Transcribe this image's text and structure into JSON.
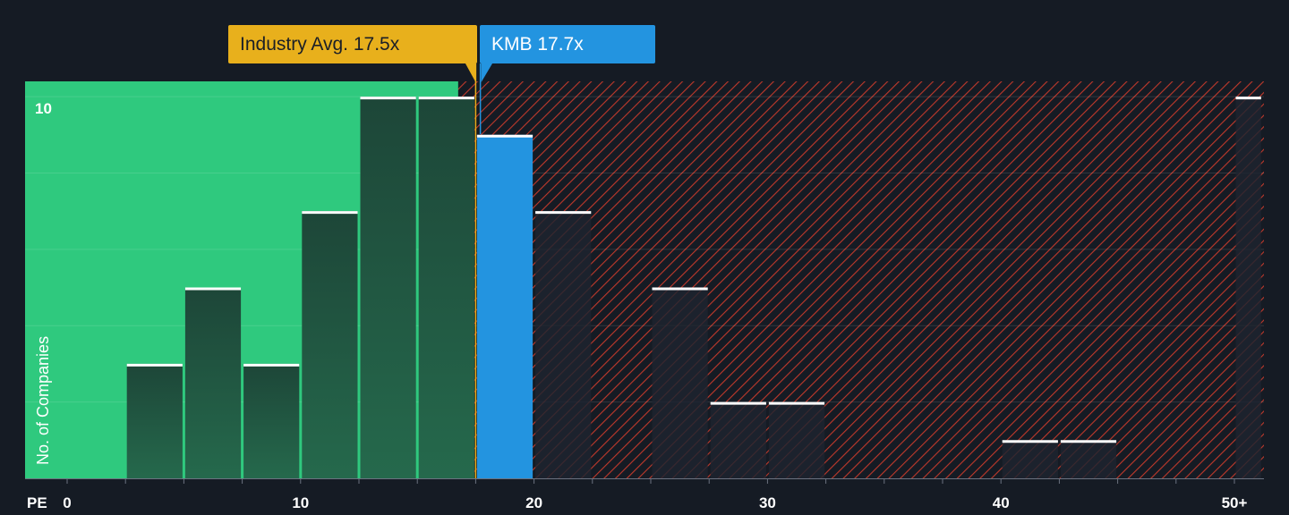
{
  "chart_data": {
    "type": "bar",
    "xlabel": "PE",
    "ylabel": "No. of Companies",
    "x_ticks": [
      "0",
      "10",
      "20",
      "30",
      "40",
      "50+"
    ],
    "y_ticks": [
      "10"
    ],
    "xlim": [
      0,
      50
    ],
    "ylim": [
      0,
      10.4
    ],
    "bin_width": 2.5,
    "bins": [
      {
        "x0": 2.5,
        "x1": 5.0,
        "value": 3
      },
      {
        "x0": 5.0,
        "x1": 7.5,
        "value": 5
      },
      {
        "x0": 7.5,
        "x1": 10.0,
        "value": 3
      },
      {
        "x0": 10.0,
        "x1": 12.5,
        "value": 7
      },
      {
        "x0": 12.5,
        "x1": 15.0,
        "value": 10
      },
      {
        "x0": 15.0,
        "x1": 17.5,
        "value": 10
      },
      {
        "x0": 17.5,
        "x1": 20.0,
        "value": 9
      },
      {
        "x0": 20.0,
        "x1": 22.5,
        "value": 7
      },
      {
        "x0": 25.0,
        "x1": 27.5,
        "value": 5
      },
      {
        "x0": 27.5,
        "x1": 30.0,
        "value": 2
      },
      {
        "x0": 30.0,
        "x1": 32.5,
        "value": 2
      },
      {
        "x0": 40.0,
        "x1": 42.5,
        "value": 1
      },
      {
        "x0": 42.5,
        "x1": 45.0,
        "value": 1
      },
      {
        "x0": 50.0,
        "x1": 51.2,
        "value": 10
      }
    ],
    "industry_avg": {
      "label": "Industry Avg. 17.5x",
      "value": 17.5
    },
    "company": {
      "label": "KMB 17.7x",
      "value": 17.7
    },
    "grid": true
  },
  "colors": {
    "background": "#151b24",
    "undervalued_region": "#2fc97e",
    "bar_dark": "#1f4a3a",
    "company_bar": "#2394e0",
    "industry_label": "#e8b01c",
    "hatch_line": "#c0392b",
    "bar_top": "#ffffff",
    "axis_text": "#ffffff"
  }
}
